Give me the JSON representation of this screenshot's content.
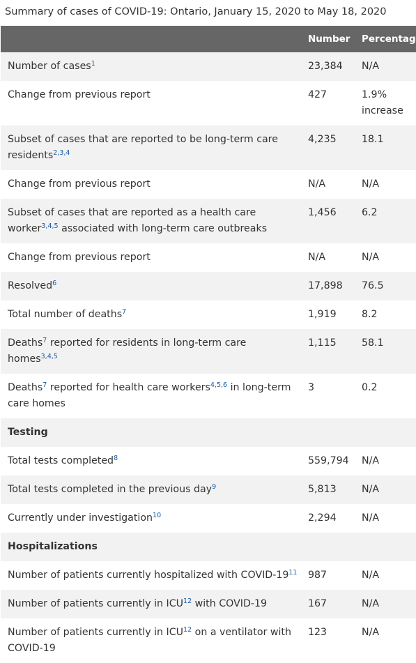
{
  "caption": "Summary of cases of COVID-19: Ontario, January 15, 2020 to May 18, 2020",
  "columns": {
    "label": "",
    "number": "Number",
    "percentage": "Percentage"
  },
  "rows": [
    {
      "label_before": "Number of cases",
      "sup": "1",
      "label_after": "",
      "number": "23,384",
      "percentage": "N/A"
    },
    {
      "label_before": "Change from previous report",
      "sup": "",
      "label_after": "",
      "number": "427",
      "percentage": "1.9% increase"
    },
    {
      "label_before": "Subset of cases that are reported to be long-term care residents",
      "sup": "2,3,4",
      "label_after": "",
      "number": "4,235",
      "percentage": "18.1"
    },
    {
      "label_before": "Change from previous report",
      "sup": "",
      "label_after": "",
      "number": "N/A",
      "percentage": "N/A"
    },
    {
      "label_before": "Subset of cases that are reported as a health care worker",
      "sup": "3,4,5",
      "label_after": " associated with long-term care outbreaks",
      "number": "1,456",
      "percentage": "6.2"
    },
    {
      "label_before": "Change from previous report",
      "sup": "",
      "label_after": "",
      "number": "N/A",
      "percentage": "N/A"
    },
    {
      "label_before": "Resolved",
      "sup": "6",
      "label_after": "",
      "number": "17,898",
      "percentage": "76.5"
    },
    {
      "label_before": "Total number of deaths",
      "sup": "7",
      "label_after": "",
      "number": "1,919",
      "percentage": "8.2"
    },
    {
      "label_before": "Deaths",
      "sup": "7",
      "label_after": " reported for residents in long-term care homes",
      "sup2": "3,4,5",
      "number": "1,115",
      "percentage": "58.1"
    },
    {
      "label_before": "Deaths",
      "sup": "7",
      "label_after": " reported for health care workers",
      "sup2": "4,5,6",
      "label_after2": " in long-term care homes",
      "number": "3",
      "percentage": "0.2"
    },
    {
      "section": "Testing"
    },
    {
      "label_before": "Total tests completed",
      "sup": "8",
      "label_after": "",
      "number": "559,794",
      "percentage": "N/A"
    },
    {
      "label_before": "Total tests completed in the previous day",
      "sup": "9",
      "label_after": "",
      "number": "5,813",
      "percentage": "N/A"
    },
    {
      "label_before": "Currently under investigation",
      "sup": "10",
      "label_after": "",
      "number": "2,294",
      "percentage": "N/A"
    },
    {
      "section": "Hospitalizations"
    },
    {
      "label_before": "Number of patients currently hospitalized with COVID-19",
      "sup": "11",
      "label_after": "",
      "number": "987",
      "percentage": "N/A"
    },
    {
      "label_before": "Number of patients currently in ICU",
      "sup": "12",
      "label_after": " with COVID-19",
      "number": "167",
      "percentage": "N/A"
    },
    {
      "label_before": "Number of patients currently in ICU",
      "sup": "12",
      "label_after": " on a ventilator with COVID-19",
      "number": "123",
      "percentage": "N/A"
    }
  ]
}
